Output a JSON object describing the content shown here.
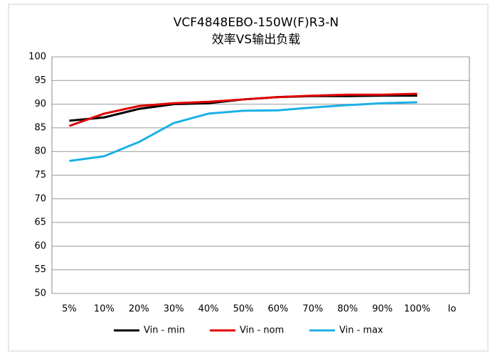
{
  "chart_data": {
    "type": "line",
    "title": "VCF4848EBO-150W(F)R3-N",
    "subtitle": "效率VS输出负载",
    "categories": [
      "5%",
      "10%",
      "20%",
      "30%",
      "40%",
      "50%",
      "60%",
      "70%",
      "80%",
      "90%",
      "100%",
      "Io"
    ],
    "series": [
      {
        "name": "Vin - min",
        "color": "#000000",
        "values": [
          86.5,
          87.2,
          89,
          90,
          90.2,
          91,
          91.5,
          91.7,
          91.7,
          91.8,
          91.8,
          null
        ]
      },
      {
        "name": "Vin - nom",
        "color": "#e00000",
        "values": [
          85.4,
          88,
          89.6,
          90.2,
          90.5,
          91,
          91.5,
          91.8,
          92,
          92,
          92.2,
          null
        ]
      },
      {
        "name": "Vin - max",
        "color": "#1ab0e6",
        "values": [
          78,
          79,
          82,
          86,
          88,
          88.6,
          88.7,
          89.3,
          89.8,
          90.2,
          90.4,
          null
        ]
      }
    ],
    "ylim": [
      50,
      100
    ],
    "yticks": [
      50,
      55,
      60,
      65,
      70,
      75,
      80,
      85,
      90,
      95,
      100
    ],
    "grid": true,
    "legend": "bottom"
  }
}
